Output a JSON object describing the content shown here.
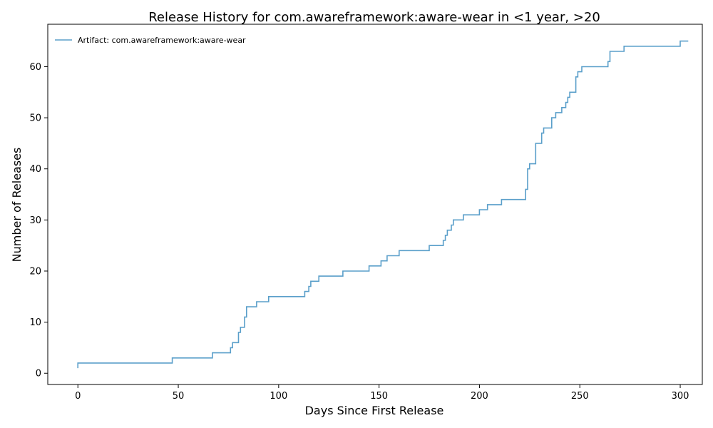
{
  "chart_data": {
    "type": "line",
    "title": "Release History for com.awareframework:aware-wear in <1 year, >20",
    "xlabel": "Days Since First Release",
    "ylabel": "Number of Releases",
    "xlim": [
      -15,
      311
    ],
    "ylim": [
      -2.2,
      68.3
    ],
    "xticks": [
      0,
      50,
      100,
      150,
      200,
      250,
      300
    ],
    "yticks": [
      0,
      10,
      20,
      30,
      40,
      50,
      60
    ],
    "grid": false,
    "legend_position": "top-left",
    "step": "post",
    "colors": {
      "series": "#5a9fca"
    },
    "series": [
      {
        "name": "Artifact: com.awareframework:aware-wear",
        "x": [
          0,
          0,
          47,
          67,
          76,
          77,
          78,
          80,
          81,
          83,
          84,
          89,
          95,
          113,
          114,
          115,
          116,
          120,
          132,
          145,
          151,
          154,
          160,
          175,
          181,
          182,
          183,
          184,
          186,
          187,
          192,
          200,
          204,
          211,
          223,
          224,
          225,
          228,
          231,
          232,
          236,
          238,
          241,
          243,
          244,
          245,
          246,
          248,
          249,
          251,
          264,
          265,
          272,
          300,
          304
        ],
        "y": [
          1,
          2,
          3,
          4,
          5,
          6,
          6,
          8,
          9,
          11,
          13,
          14,
          15,
          16,
          16,
          17,
          18,
          19,
          20,
          21,
          22,
          23,
          24,
          25,
          25,
          26,
          27,
          28,
          29,
          30,
          31,
          32,
          33,
          34,
          36,
          40,
          41,
          45,
          47,
          48,
          50,
          51,
          52,
          53,
          54,
          55,
          55,
          58,
          59,
          60,
          61,
          63,
          64,
          65,
          65
        ]
      }
    ]
  }
}
